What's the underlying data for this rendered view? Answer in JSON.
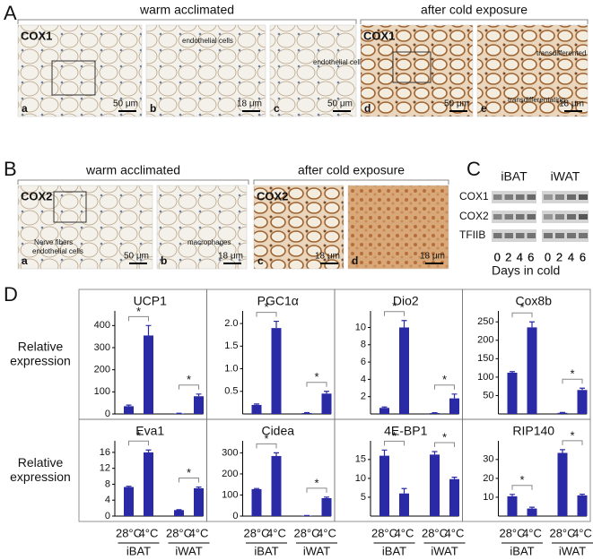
{
  "panels": {
    "A": {
      "label": "A",
      "groups": [
        "warm acclimated",
        "after cold exposure"
      ],
      "images": [
        {
          "stain": "COX1",
          "tag": "a",
          "scale": "50 μm"
        },
        {
          "tag": "b",
          "note": "endothelial cells",
          "scale": "18 μm"
        },
        {
          "tag": "c",
          "note": "endothelial cells",
          "scale": "50 μm"
        },
        {
          "stain": "COX1",
          "tag": "d",
          "scale": "50 μm"
        },
        {
          "tag": "e",
          "note": "transdifferented",
          "note2": "transdifferentating",
          "scale": "18 μm"
        }
      ]
    },
    "B": {
      "label": "B",
      "groups": [
        "warm acclimated",
        "after cold exposure"
      ],
      "images": [
        {
          "stain": "COX2",
          "tag": "a",
          "note": "Nerve fibers",
          "note2": "endothelial cells",
          "scale": "50 μm"
        },
        {
          "tag": "b",
          "note": "macrophages",
          "scale": "18 μm"
        },
        {
          "stain": "COX2",
          "tag": "c",
          "scale": "18 μm"
        },
        {
          "tag": "d",
          "scale": "18 μm"
        }
      ]
    },
    "C": {
      "label": "C",
      "tissues": [
        "iBAT",
        "iWAT"
      ],
      "proteins": [
        "COX1",
        "COX2",
        "TFIIB"
      ],
      "lanes": [
        "0",
        "2",
        "4",
        "6"
      ],
      "xlabel": "Days in cold"
    },
    "D": {
      "label": "D",
      "ylabel": [
        "Relative",
        "expression"
      ],
      "conditions": [
        "28°C",
        "4°C",
        "28°C",
        "4°C"
      ],
      "groups": [
        "iBAT",
        "iWAT"
      ]
    }
  },
  "chart_data": [
    {
      "type": "bar",
      "title": "UCP1",
      "values": [
        35,
        355,
        2,
        80
      ],
      "errors": [
        5,
        45,
        1,
        10
      ],
      "significance": [
        "*",
        "*"
      ],
      "color": "#2a2aa6",
      "ylim": [
        0,
        450
      ],
      "yticks": [
        0,
        100,
        200,
        300,
        400
      ]
    },
    {
      "type": "bar",
      "title": "PGC1α",
      "values": [
        0.2,
        1.9,
        0.02,
        0.45
      ],
      "errors": [
        0.02,
        0.15,
        0.01,
        0.05
      ],
      "significance": [
        "*",
        "*"
      ],
      "color": "#2a2aa6",
      "ylim": [
        0,
        2.2
      ],
      "yticks": [
        0.5,
        {
          "value": 1,
          "label": "1.0"
        },
        1.5,
        {
          "value": 2,
          "label": "2.0"
        }
      ]
    },
    {
      "type": "bar",
      "title": "Dio2",
      "values": [
        0.7,
        10,
        0.1,
        1.8
      ],
      "errors": [
        0.1,
        0.8,
        0.05,
        0.5
      ],
      "significance": [
        "*",
        "*"
      ],
      "color": "#2a2aa6",
      "ylim": [
        0,
        11.5
      ],
      "yticks": [
        2,
        4,
        6,
        8,
        10
      ]
    },
    {
      "type": "bar",
      "title": "Cox8b",
      "values": [
        112,
        235,
        3,
        65
      ],
      "errors": [
        3,
        15,
        1,
        5
      ],
      "significance": [
        "*",
        "*"
      ],
      "color": "#2a2aa6",
      "ylim": [
        0,
        270
      ],
      "yticks": [
        50,
        100,
        150,
        200,
        250
      ]
    },
    {
      "type": "bar",
      "title": "Eva1",
      "values": [
        7.3,
        16,
        1.5,
        7
      ],
      "errors": [
        0.2,
        0.6,
        0.1,
        0.3
      ],
      "significance": [
        "*",
        "*"
      ],
      "color": "#2a2aa6",
      "ylim": [
        0,
        18
      ],
      "yticks": [
        0,
        4,
        8,
        12,
        16
      ]
    },
    {
      "type": "bar",
      "title": "Cidea",
      "values": [
        128,
        285,
        2,
        85
      ],
      "errors": [
        3,
        15,
        1,
        5
      ],
      "significance": [
        "*",
        "*"
      ],
      "color": "#2a2aa6",
      "ylim": [
        0,
        340
      ],
      "yticks": [
        0,
        100,
        200,
        300
      ]
    },
    {
      "type": "bar",
      "title": "4E-BP1",
      "values": [
        16,
        6,
        16.3,
        9.8
      ],
      "errors": [
        1.5,
        1.3,
        0.8,
        0.5
      ],
      "significance": [
        "*",
        "*"
      ],
      "color": "#2a2aa6",
      "ylim": [
        0,
        19
      ],
      "yticks": [
        5,
        10,
        15
      ]
    },
    {
      "type": "bar",
      "title": "RIP140",
      "values": [
        10.5,
        4,
        33.5,
        11
      ],
      "errors": [
        1,
        0.7,
        1.7,
        0.6
      ],
      "significance": [
        "*",
        "*"
      ],
      "color": "#2a2aa6",
      "ylim": [
        0,
        38
      ],
      "yticks": [
        10,
        20,
        30
      ]
    }
  ]
}
